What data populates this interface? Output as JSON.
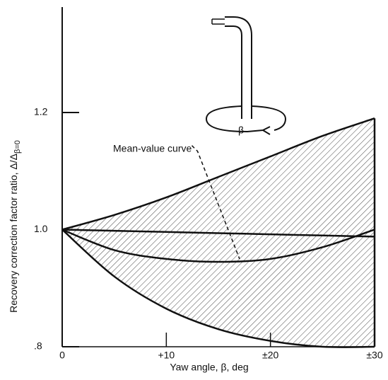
{
  "chart_data": {
    "type": "line",
    "xlabel": "Yaw angle, β, deg",
    "ylabel": "Recovery correction factor ratio, Δ/Δ",
    "ylabel_subscript": "β=0",
    "annotation": "Mean-value curve",
    "diagram_label": "β",
    "x": [
      0,
      5,
      10,
      15,
      20,
      25,
      30
    ],
    "series": [
      {
        "color": "#111111",
        "values": [
          1.0,
          1.025,
          1.055,
          1.09,
          1.125,
          1.16,
          1.19
        ]
      },
      {
        "color": "#111111",
        "values": [
          1.0,
          0.92,
          0.865,
          0.83,
          0.81,
          0.8,
          0.8
        ]
      },
      {
        "color": "#111111",
        "values": [
          1.0,
          0.965,
          0.95,
          0.945,
          0.95,
          0.97,
          1.0
        ]
      },
      {
        "color": "#111111",
        "values": [
          1.0,
          0.998,
          0.996,
          0.994,
          0.992,
          0.99,
          0.988
        ]
      }
    ],
    "xlim": [
      0,
      30
    ],
    "ylim": [
      0.8,
      1.38
    ],
    "xticks": [
      0,
      {
        "value": 10,
        "label": "+10"
      },
      {
        "value": 20,
        "label": "±20"
      },
      {
        "value": 30,
        "label": "±30"
      }
    ],
    "yticks": [
      {
        "value": 0.8,
        "label": ".8"
      },
      {
        "value": 1.0,
        "label": "1.0"
      },
      {
        "value": 1.2,
        "label": "1.2"
      }
    ],
    "grid": false
  }
}
